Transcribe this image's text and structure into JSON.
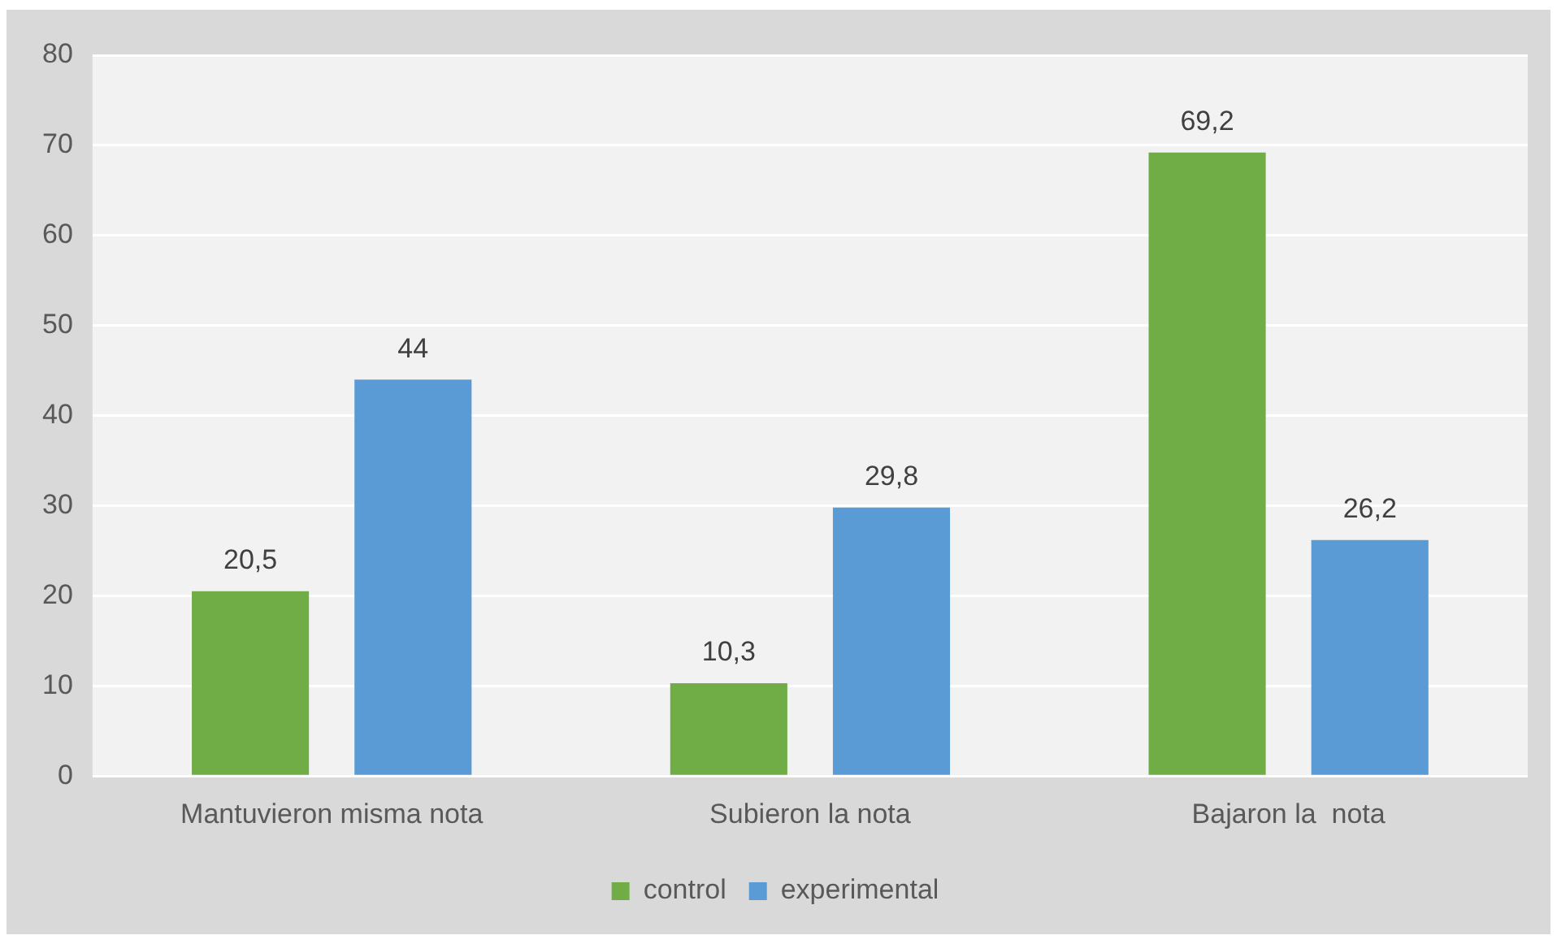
{
  "chart_data": {
    "type": "bar",
    "categories": [
      "Mantuvieron misma nota",
      "Subieron la nota",
      "Bajaron la  nota"
    ],
    "series": [
      {
        "name": "control",
        "color": "#70ad47",
        "values": [
          20.5,
          10.3,
          69.2
        ],
        "value_labels": [
          "20,5",
          "10,3",
          "69,2"
        ]
      },
      {
        "name": "experimental",
        "color": "#5b9bd5",
        "values": [
          44,
          29.8,
          26.2
        ],
        "value_labels": [
          "44",
          "29,8",
          "26,2"
        ]
      }
    ],
    "ylim": [
      0,
      80
    ],
    "yticks": [
      0,
      10,
      20,
      30,
      40,
      50,
      60,
      70,
      80
    ],
    "grid": "y",
    "legend": "bottom"
  }
}
